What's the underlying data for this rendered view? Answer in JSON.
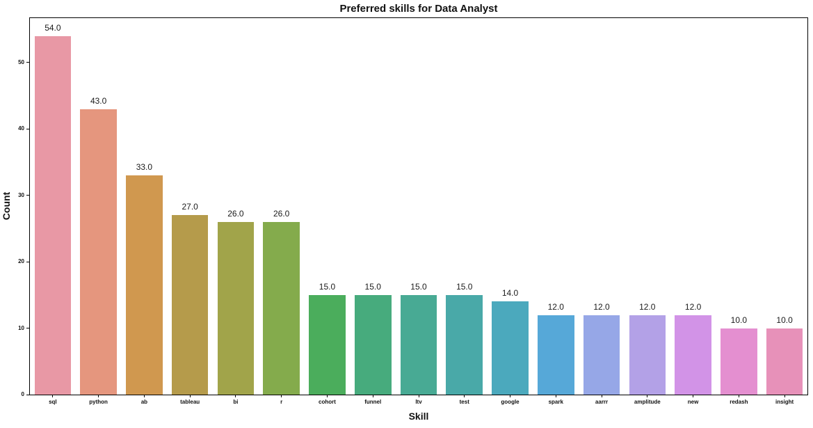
{
  "chart_data": {
    "type": "bar",
    "title": "Preferred skills for Data Analyst",
    "xlabel": "Skill",
    "ylabel": "Count",
    "categories": [
      "sql",
      "python",
      "ab",
      "tableau",
      "bi",
      "r",
      "cohort",
      "funnel",
      "ltv",
      "test",
      "google",
      "spark",
      "aarrr",
      "amplitude",
      "new",
      "redash",
      "insight"
    ],
    "values": [
      54,
      43,
      33,
      27,
      26,
      26,
      15,
      15,
      15,
      15,
      14,
      12,
      12,
      12,
      12,
      10,
      10
    ],
    "bar_value_labels": [
      "54.0",
      "43.0",
      "33.0",
      "27.0",
      "26.0",
      "26.0",
      "15.0",
      "15.0",
      "15.0",
      "15.0",
      "14.0",
      "12.0",
      "12.0",
      "12.0",
      "12.0",
      "10.0",
      "10.0"
    ],
    "bar_colors": [
      "#e898a5",
      "#e5967e",
      "#d0984f",
      "#b59b4b",
      "#a1a44a",
      "#84ab4c",
      "#4bad5c",
      "#47ab7d",
      "#48aa94",
      "#49a9a8",
      "#4ba9bd",
      "#56a8d8",
      "#96a7e7",
      "#b3a1e7",
      "#d293e7",
      "#e48fd0",
      "#e791b9"
    ],
    "yticks": [
      0,
      10,
      20,
      30,
      40,
      50
    ],
    "ylim": [
      0,
      56.7
    ],
    "grid": false,
    "legend": "none",
    "spine_color": "#000000",
    "background_color": "#ffffff"
  }
}
